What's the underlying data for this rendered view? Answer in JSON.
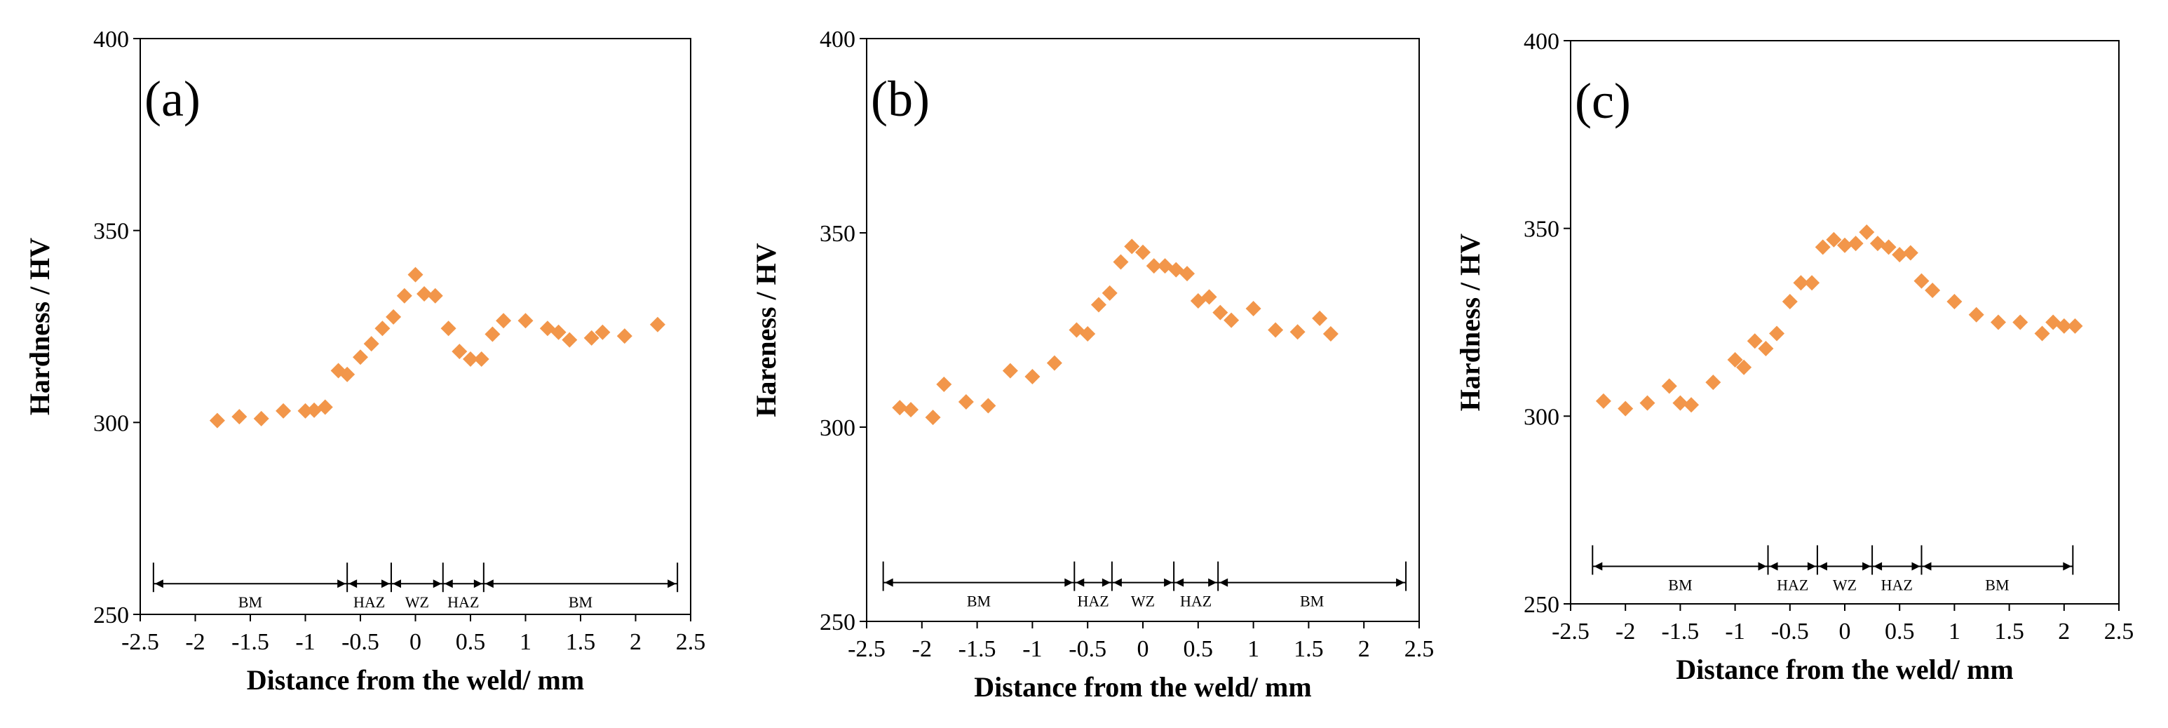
{
  "colors": {
    "marker": "#F2964A",
    "axis": "#000000",
    "background": "#ffffff"
  },
  "chart_data": [
    {
      "type": "scatter",
      "panel_label": "(a)",
      "title": "",
      "xlabel": "Distance from the weld/ mm",
      "ylabel": "Hardness / HV",
      "xlim": [
        -2.5,
        2.5
      ],
      "ylim": [
        250,
        400
      ],
      "xticks": [
        "-2.5",
        "-2",
        "-1.5",
        "-1",
        "-0.5",
        "0",
        "0.5",
        "1",
        "1.5",
        "2",
        "2.5"
      ],
      "yticks": [
        "250",
        "300",
        "350",
        "400"
      ],
      "grid": false,
      "series": [
        {
          "name": "Hardness",
          "points": [
            [
              -1.8,
              300.5
            ],
            [
              -1.6,
              301.5
            ],
            [
              -1.4,
              301
            ],
            [
              -1.2,
              303
            ],
            [
              -1.0,
              303
            ],
            [
              -0.92,
              303.2
            ],
            [
              -0.82,
              304
            ],
            [
              -0.7,
              313.5
            ],
            [
              -0.62,
              312.5
            ],
            [
              -0.5,
              317
            ],
            [
              -0.4,
              320.5
            ],
            [
              -0.3,
              324.5
            ],
            [
              -0.2,
              327.5
            ],
            [
              -0.1,
              333
            ],
            [
              0.0,
              338.5
            ],
            [
              0.08,
              333.5
            ],
            [
              0.18,
              333
            ],
            [
              0.3,
              324.5
            ],
            [
              0.4,
              318.5
            ],
            [
              0.5,
              316.5
            ],
            [
              0.6,
              316.5
            ],
            [
              0.7,
              323
            ],
            [
              0.8,
              326.5
            ],
            [
              1.0,
              326.5
            ],
            [
              1.2,
              324.5
            ],
            [
              1.3,
              323.5
            ],
            [
              1.4,
              321.5
            ],
            [
              1.6,
              322
            ],
            [
              1.7,
              323.5
            ],
            [
              1.9,
              322.5
            ],
            [
              2.2,
              325.5
            ]
          ]
        }
      ],
      "zones": {
        "y": 258,
        "x_start": -2.38,
        "boundaries": [
          -0.62,
          -0.22,
          0.25,
          0.62
        ],
        "x_end": 2.38,
        "labels": [
          "BM",
          "HAZ",
          "WZ",
          "HAZ",
          "BM"
        ]
      }
    },
    {
      "type": "scatter",
      "panel_label": "(b)",
      "title": "",
      "xlabel": "Distance from the weld/ mm",
      "ylabel": "Hareness / HV",
      "xlim": [
        -2.5,
        2.5
      ],
      "ylim": [
        250,
        400
      ],
      "xticks": [
        "-2.5",
        "-2",
        "-1.5",
        "-1",
        "-0.5",
        "0",
        "0.5",
        "1",
        "1.5",
        "2",
        "2.5"
      ],
      "yticks": [
        "250",
        "300",
        "350",
        "400"
      ],
      "grid": false,
      "series": [
        {
          "name": "Hardness",
          "points": [
            [
              -2.2,
              305
            ],
            [
              -2.1,
              304.5
            ],
            [
              -1.9,
              302.5
            ],
            [
              -1.8,
              311
            ],
            [
              -1.6,
              306.5
            ],
            [
              -1.4,
              305.5
            ],
            [
              -1.2,
              314.5
            ],
            [
              -1.0,
              313
            ],
            [
              -0.8,
              316.5
            ],
            [
              -0.6,
              325
            ],
            [
              -0.5,
              324
            ],
            [
              -0.4,
              331.5
            ],
            [
              -0.3,
              334.5
            ],
            [
              -0.2,
              342.5
            ],
            [
              -0.1,
              346.5
            ],
            [
              0.0,
              345
            ],
            [
              0.1,
              341.5
            ],
            [
              0.2,
              341.5
            ],
            [
              0.3,
              340.5
            ],
            [
              0.4,
              339.5
            ],
            [
              0.5,
              332.5
            ],
            [
              0.6,
              333.5
            ],
            [
              0.7,
              329.5
            ],
            [
              0.8,
              327.5
            ],
            [
              1.0,
              330.5
            ],
            [
              1.2,
              325
            ],
            [
              1.4,
              324.5
            ],
            [
              1.6,
              328
            ],
            [
              1.7,
              324
            ]
          ]
        }
      ],
      "zones": {
        "y": 260,
        "x_start": -2.35,
        "boundaries": [
          -0.62,
          -0.28,
          0.28,
          0.68
        ],
        "x_end": 2.38,
        "labels": [
          "BM",
          "HAZ",
          "WZ",
          "HAZ",
          "BM"
        ]
      }
    },
    {
      "type": "scatter",
      "panel_label": "(c)",
      "title": "",
      "xlabel": "Distance from the weld/ mm",
      "ylabel": "Hardness / HV",
      "xlim": [
        -2.5,
        2.5
      ],
      "ylim": [
        250,
        400
      ],
      "xticks": [
        "-2.5",
        "-2",
        "-1.5",
        "-1",
        "-0.5",
        "0",
        "0.5",
        "1",
        "1.5",
        "2",
        "2.5"
      ],
      "yticks": [
        "250",
        "300",
        "350",
        "400"
      ],
      "grid": false,
      "series": [
        {
          "name": "Hardness",
          "points": [
            [
              -2.2,
              304
            ],
            [
              -2.0,
              302
            ],
            [
              -1.8,
              303.5
            ],
            [
              -1.6,
              308
            ],
            [
              -1.5,
              303.5
            ],
            [
              -1.4,
              303
            ],
            [
              -1.2,
              309
            ],
            [
              -1.0,
              315
            ],
            [
              -0.92,
              313
            ],
            [
              -0.82,
              320
            ],
            [
              -0.72,
              318
            ],
            [
              -0.62,
              322
            ],
            [
              -0.5,
              330.5
            ],
            [
              -0.4,
              335.5
            ],
            [
              -0.3,
              335.5
            ],
            [
              -0.2,
              345
            ],
            [
              -0.1,
              347
            ],
            [
              0.0,
              345.5
            ],
            [
              0.1,
              346
            ],
            [
              0.2,
              349
            ],
            [
              0.3,
              346
            ],
            [
              0.4,
              345
            ],
            [
              0.5,
              343
            ],
            [
              0.6,
              343.5
            ],
            [
              0.7,
              336
            ],
            [
              0.8,
              333.5
            ],
            [
              1.0,
              330.5
            ],
            [
              1.2,
              327
            ],
            [
              1.4,
              325
            ],
            [
              1.6,
              325
            ],
            [
              1.8,
              322
            ],
            [
              1.9,
              325
            ],
            [
              2.0,
              324
            ],
            [
              2.1,
              324
            ]
          ]
        }
      ],
      "zones": {
        "y": 260,
        "x_start": -2.3,
        "boundaries": [
          -0.7,
          -0.25,
          0.25,
          0.7
        ],
        "x_end": 2.08,
        "labels": [
          "BM",
          "HAZ",
          "WZ",
          "HAZ",
          "BM"
        ]
      }
    }
  ]
}
